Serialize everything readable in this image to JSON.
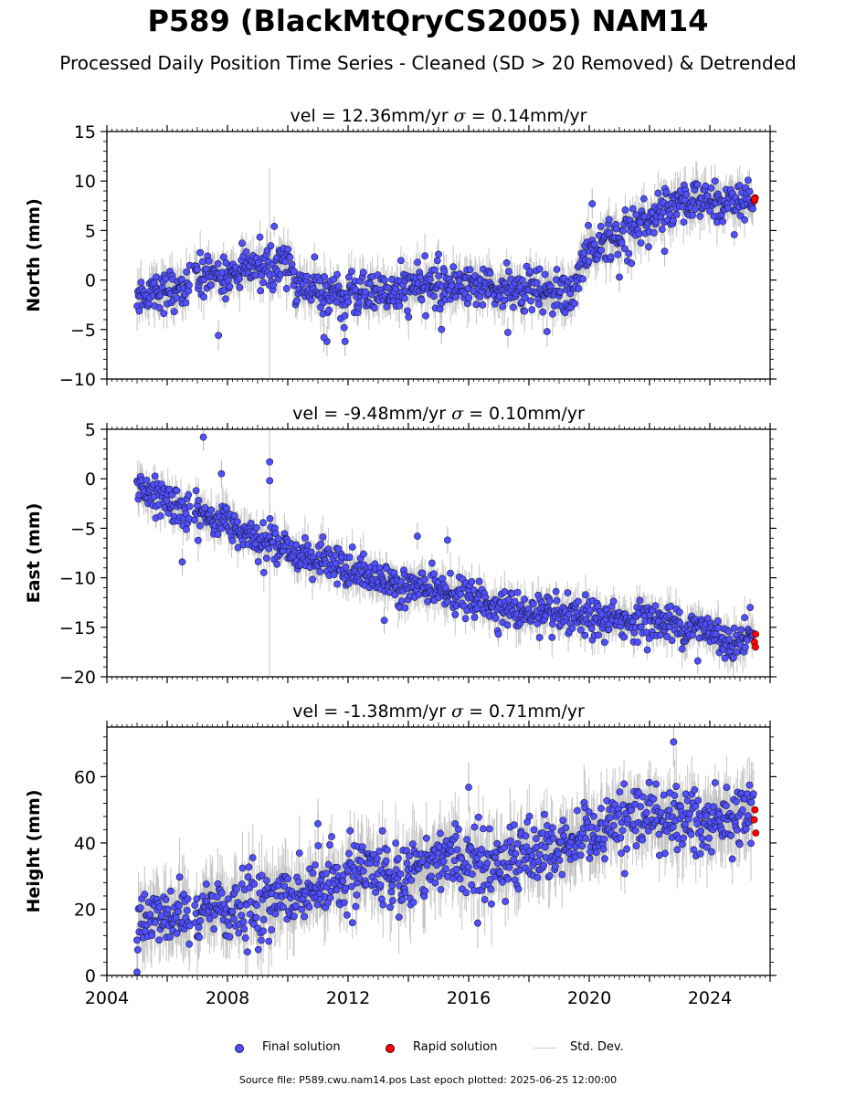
{
  "header": {
    "title": "P589 (BlackMtQryCS2005) NAM14",
    "subtitle": "Processed Daily Position Time Series - Cleaned (SD > 20 Removed) & Detrended"
  },
  "footer": {
    "note": "Source file: P589.cwu.nam14.pos  Last epoch plotted: 2025-06-25 12:00:00"
  },
  "legend": {
    "final": "Final solution",
    "rapid": "Rapid solution",
    "std": "Std. Dev."
  },
  "colors": {
    "final_fill": "#5050ff",
    "final_edge": "#1a1a40",
    "rapid_fill": "#ff0000",
    "errbar": "#bdbdbd"
  },
  "chart_data": [
    {
      "type": "scatter",
      "panel": "north",
      "title_prefix": "vel = 12.36mm/yr",
      "title_sigma": "= 0.14mm/yr",
      "ylabel": "North (mm)",
      "xlim": [
        2004,
        2026
      ],
      "ylim": [
        -10,
        15
      ],
      "yticks": [
        -10,
        -5,
        0,
        5,
        10,
        15
      ],
      "yticklabels": [
        "−10",
        "−5",
        "0",
        "5",
        "10",
        "15"
      ],
      "trend_knots": [
        [
          2005.0,
          -1.6
        ],
        [
          2005.6,
          -1.0
        ],
        [
          2006.5,
          -0.9
        ],
        [
          2006.9,
          0.4
        ],
        [
          2008.0,
          0.4
        ],
        [
          2009.0,
          1.3
        ],
        [
          2009.9,
          1.8
        ],
        [
          2010.3,
          -0.3
        ],
        [
          2011.5,
          -1.5
        ],
        [
          2013.0,
          -1.4
        ],
        [
          2015.0,
          -0.4
        ],
        [
          2016.5,
          -0.7
        ],
        [
          2018.0,
          -1.2
        ],
        [
          2019.0,
          -1.5
        ],
        [
          2019.5,
          -1.6
        ],
        [
          2019.8,
          2.4
        ],
        [
          2020.5,
          3.8
        ],
        [
          2021.5,
          5.2
        ],
        [
          2022.5,
          7.3
        ],
        [
          2023.5,
          8.0
        ],
        [
          2024.5,
          7.8
        ],
        [
          2025.45,
          7.8
        ]
      ],
      "scatter_sd": 1.0,
      "rapid_values": [
        [
          2025.46,
          8.3
        ],
        [
          2025.47,
          8.0
        ],
        [
          2025.48,
          8.2
        ]
      ],
      "outliers": [
        [
          2007.7,
          -5.6
        ],
        [
          2011.3,
          -6.2
        ],
        [
          2011.2,
          -5.8
        ],
        [
          2011.9,
          -6.2
        ],
        [
          2015.1,
          -5.0
        ],
        [
          2017.3,
          -5.3
        ],
        [
          2018.6,
          -5.2
        ],
        [
          2020.1,
          7.7
        ],
        [
          2021.0,
          0.3
        ],
        [
          2022.5,
          2.9
        ],
        [
          2015.0,
          2.6
        ]
      ]
    },
    {
      "type": "scatter",
      "panel": "east",
      "title_prefix": "vel = -9.48mm/yr",
      "title_sigma": "= 0.10mm/yr",
      "ylabel": "East (mm)",
      "xlim": [
        2004,
        2026
      ],
      "ylim": [
        -20,
        5
      ],
      "yticks": [
        -20,
        -15,
        -10,
        -5,
        0,
        5
      ],
      "yticklabels": [
        "−20",
        "−15",
        "−10",
        "−5",
        "0",
        "5"
      ],
      "trend_knots": [
        [
          2005.0,
          -0.5
        ],
        [
          2005.5,
          -1.5
        ],
        [
          2006.0,
          -2.0
        ],
        [
          2006.8,
          -3.8
        ],
        [
          2007.0,
          -3.5
        ],
        [
          2008.0,
          -4.5
        ],
        [
          2009.0,
          -5.8
        ],
        [
          2010.0,
          -7.2
        ],
        [
          2011.0,
          -8.2
        ],
        [
          2012.0,
          -9.2
        ],
        [
          2013.0,
          -10.2
        ],
        [
          2014.0,
          -10.8
        ],
        [
          2015.0,
          -11.3
        ],
        [
          2016.0,
          -12.0
        ],
        [
          2017.0,
          -13.0
        ],
        [
          2018.0,
          -13.6
        ],
        [
          2019.0,
          -14.0
        ],
        [
          2020.0,
          -14.1
        ],
        [
          2021.0,
          -14.3
        ],
        [
          2022.0,
          -14.3
        ],
        [
          2023.0,
          -14.8
        ],
        [
          2024.0,
          -15.4
        ],
        [
          2024.6,
          -16.5
        ],
        [
          2025.0,
          -16.3
        ],
        [
          2025.45,
          -15.3
        ]
      ],
      "scatter_sd": 0.9,
      "rapid_values": [
        [
          2025.46,
          -15.7
        ],
        [
          2025.47,
          -16.5
        ],
        [
          2025.48,
          -17.0
        ]
      ],
      "outliers": [
        [
          2007.2,
          4.2
        ],
        [
          2009.4,
          1.7
        ],
        [
          2009.4,
          -0.2
        ],
        [
          2007.8,
          0.5
        ],
        [
          2006.5,
          -8.4
        ],
        [
          2014.3,
          -5.8
        ],
        [
          2015.3,
          -6.2
        ],
        [
          2013.2,
          -14.3
        ],
        [
          2016.2,
          -14.0
        ],
        [
          2023.6,
          -18.4
        ]
      ]
    },
    {
      "type": "scatter",
      "panel": "height",
      "title_prefix": "vel = -1.38mm/yr",
      "title_sigma": "= 0.71mm/yr",
      "ylabel": "Height (mm)",
      "xlim": [
        2004,
        2026
      ],
      "ylim": [
        0,
        75
      ],
      "yticks": [
        0,
        20,
        40,
        60
      ],
      "yticklabels": [
        "0",
        "20",
        "40",
        "60"
      ],
      "xticks": [
        2004,
        2008,
        2012,
        2016,
        2020,
        2024
      ],
      "xticklabels": [
        "2004",
        "2008",
        "2012",
        "2016",
        "2020",
        "2024"
      ],
      "trend_knots": [
        [
          2005.0,
          14
        ],
        [
          2005.5,
          18
        ],
        [
          2006.5,
          21
        ],
        [
          2006.9,
          14
        ],
        [
          2007.3,
          22
        ],
        [
          2008.0,
          19
        ],
        [
          2009.0,
          21
        ],
        [
          2010.0,
          24
        ],
        [
          2011.0,
          26
        ],
        [
          2012.0,
          29
        ],
        [
          2013.0,
          31
        ],
        [
          2014.0,
          32
        ],
        [
          2015.0,
          35
        ],
        [
          2016.0,
          36
        ],
        [
          2017.0,
          34
        ],
        [
          2018.0,
          37
        ],
        [
          2019.0,
          37
        ],
        [
          2020.0,
          41
        ],
        [
          2021.0,
          46
        ],
        [
          2022.0,
          47
        ],
        [
          2023.0,
          49
        ],
        [
          2024.0,
          46
        ],
        [
          2025.45,
          48
        ]
      ],
      "scatter_sd": 5.0,
      "rapid_values": [
        [
          2025.46,
          50
        ],
        [
          2025.47,
          47
        ],
        [
          2025.48,
          43
        ]
      ],
      "outliers": [
        [
          2022.8,
          70.5
        ],
        [
          2016.3,
          15.8
        ],
        [
          2005.0,
          1.0
        ],
        [
          2011.0,
          45.8
        ],
        [
          2016.0,
          56.8
        ]
      ]
    }
  ]
}
